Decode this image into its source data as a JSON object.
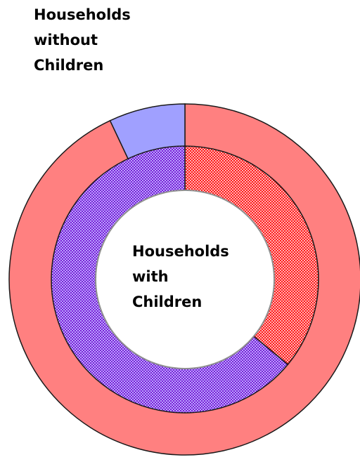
{
  "chart_data": {
    "type": "donut",
    "rings": [
      {
        "name": "Households without Children",
        "label_lines": [
          "Households",
          "without",
          "Children"
        ],
        "slices": [
          {
            "value": 93,
            "color": "#ff8080",
            "pattern": "solid"
          },
          {
            "value": 7,
            "color": "#a0a0ff",
            "pattern": "solid"
          }
        ]
      },
      {
        "name": "Households with Children",
        "label_lines": [
          "Households",
          "with",
          "Children"
        ],
        "slices": [
          {
            "value": 36,
            "color": "#ff1a1a",
            "pattern": "checker"
          },
          {
            "value": 64,
            "color": "#8a2be2",
            "pattern": "checker"
          }
        ]
      }
    ],
    "start_angle_deg": 0,
    "direction": "clockwise"
  }
}
